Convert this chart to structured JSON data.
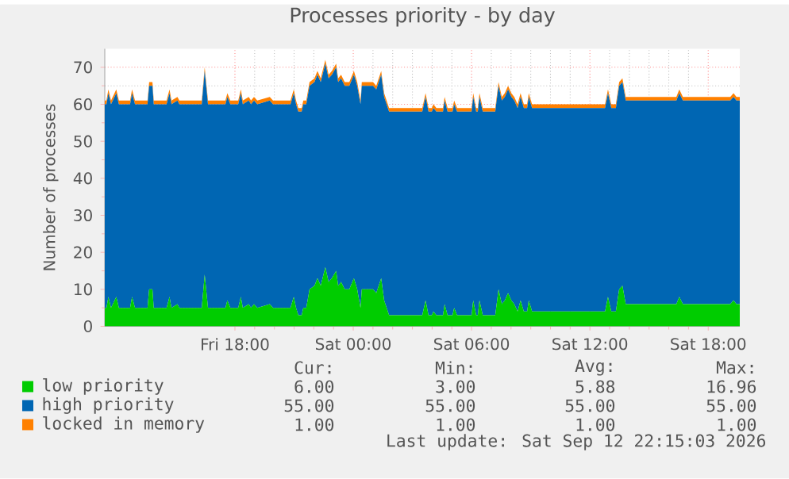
{
  "chart_data": {
    "type": "area",
    "title": "Processes priority - by day",
    "ylabel": "Number of processes",
    "stacked": true,
    "grid": true,
    "legend": "bottom",
    "x": [
      "2026-09-11T11:24",
      "2026-09-11T11:29",
      "2026-09-11T11:35",
      "2026-09-11T11:43",
      "2026-09-11T11:59",
      "2026-09-11T12:07",
      "2026-09-11T12:41",
      "2026-09-11T12:47",
      "2026-09-11T12:56",
      "2026-09-11T13:34",
      "2026-09-11T13:39",
      "2026-09-11T13:49",
      "2026-09-11T13:53",
      "2026-09-11T14:32",
      "2026-09-11T14:41",
      "2026-09-11T14:47",
      "2026-09-11T15:05",
      "2026-09-11T15:11",
      "2026-09-11T16:19",
      "2026-09-11T16:28",
      "2026-09-11T16:38",
      "2026-09-11T17:31",
      "2026-09-11T17:37",
      "2026-09-11T17:46",
      "2026-09-11T18:10",
      "2026-09-11T18:18",
      "2026-09-11T18:24",
      "2026-09-11T18:42",
      "2026-09-11T18:49",
      "2026-09-11T18:58",
      "2026-09-11T19:08",
      "2026-09-11T19:46",
      "2026-09-11T19:56",
      "2026-09-11T20:49",
      "2026-09-11T20:59",
      "2026-09-11T21:06",
      "2026-09-11T21:13",
      "2026-09-11T21:23",
      "2026-09-11T21:28",
      "2026-09-11T21:37",
      "2026-09-11T21:47",
      "2026-09-11T22:02",
      "2026-09-11T22:11",
      "2026-09-11T22:21",
      "2026-09-11T22:35",
      "2026-09-11T22:45",
      "2026-09-11T22:55",
      "2026-09-11T23:08",
      "2026-09-11T23:14",
      "2026-09-11T23:23",
      "2026-09-11T23:34",
      "2026-09-11T23:48",
      "2026-09-12T00:02",
      "2026-09-12T00:12",
      "2026-09-12T00:22",
      "2026-09-12T00:26",
      "2026-09-12T01:00",
      "2026-09-12T01:10",
      "2026-09-12T01:25",
      "2026-09-12T01:34",
      "2026-09-12T01:49",
      "2026-09-12T03:30",
      "2026-09-12T03:40",
      "2026-09-12T03:49",
      "2026-09-12T03:59",
      "2026-09-12T04:04",
      "2026-09-12T04:13",
      "2026-09-12T04:33",
      "2026-09-12T04:38",
      "2026-09-12T04:47",
      "2026-09-12T05:02",
      "2026-09-12T05:07",
      "2026-09-12T05:16",
      "2026-09-12T06:00",
      "2026-09-12T06:05",
      "2026-09-12T06:14",
      "2026-09-12T06:19",
      "2026-09-12T06:24",
      "2026-09-12T06:34",
      "2026-09-12T07:12",
      "2026-09-12T07:22",
      "2026-09-12T07:32",
      "2026-09-12T07:41",
      "2026-09-12T07:51",
      "2026-09-12T08:01",
      "2026-09-12T08:10",
      "2026-09-12T08:20",
      "2026-09-12T08:29",
      "2026-09-12T08:39",
      "2026-09-12T08:49",
      "2026-09-12T08:54",
      "2026-09-12T09:04",
      "2026-09-12T12:46",
      "2026-09-12T12:55",
      "2026-09-12T13:05",
      "2026-09-12T13:19",
      "2026-09-12T13:29",
      "2026-09-12T13:39",
      "2026-09-12T13:49",
      "2026-09-12T16:23",
      "2026-09-12T16:32",
      "2026-09-12T16:43",
      "2026-09-12T19:07",
      "2026-09-12T19:17",
      "2026-09-12T19:26",
      "2026-09-12T19:36"
    ],
    "series": [
      {
        "name": "low priority",
        "color": "#00cc00",
        "values": [
          5,
          5,
          8,
          5,
          8,
          5,
          5,
          8,
          5,
          5,
          10,
          10,
          5,
          5,
          8,
          5,
          6,
          5,
          5,
          14,
          5,
          5,
          7,
          5,
          5,
          8,
          5,
          6,
          5,
          6,
          5,
          6,
          5,
          5,
          8,
          5,
          3,
          3,
          5,
          5,
          10,
          11,
          13,
          11,
          16,
          12,
          13,
          15,
          11,
          12,
          10,
          10,
          13,
          10,
          5,
          10,
          10,
          9,
          13,
          7,
          3,
          3,
          7,
          3,
          3,
          4,
          3,
          3,
          6,
          3,
          3,
          5,
          3,
          3,
          7,
          3,
          3,
          7,
          3,
          3,
          10,
          6,
          7,
          9,
          7,
          6,
          4,
          7,
          4,
          4,
          7,
          4,
          4,
          8,
          4,
          4,
          10,
          11,
          6,
          6,
          8,
          6,
          6,
          7,
          6,
          6
        ]
      },
      {
        "name": "high priority",
        "color": "#0066b3",
        "values": [
          55,
          55,
          55,
          55,
          55,
          55,
          55,
          55,
          55,
          55,
          55,
          55,
          55,
          55,
          55,
          55,
          55,
          55,
          55,
          55,
          55,
          55,
          55,
          55,
          55,
          55,
          55,
          55,
          55,
          55,
          55,
          55,
          55,
          55,
          55,
          55,
          55,
          55,
          55,
          55,
          55,
          55,
          55,
          55,
          55,
          55,
          55,
          55,
          55,
          55,
          55,
          55,
          55,
          55,
          55,
          55,
          55,
          55,
          55,
          55,
          55,
          55,
          55,
          55,
          55,
          55,
          55,
          55,
          55,
          55,
          55,
          55,
          55,
          55,
          55,
          55,
          55,
          55,
          55,
          55,
          55,
          55,
          55,
          55,
          55,
          55,
          55,
          55,
          55,
          55,
          55,
          55,
          55,
          55,
          55,
          55,
          55,
          55,
          55,
          55,
          55,
          55,
          55,
          55,
          55,
          55
        ]
      },
      {
        "name": "locked in memory",
        "color": "#ff8000",
        "values": [
          1,
          1,
          1,
          1,
          1,
          1,
          1,
          1,
          1,
          1,
          1,
          1,
          1,
          1,
          1,
          1,
          1,
          1,
          1,
          1,
          1,
          1,
          1,
          1,
          1,
          1,
          1,
          1,
          1,
          1,
          1,
          1,
          1,
          1,
          1,
          1,
          1,
          1,
          1,
          1,
          1,
          1,
          1,
          1,
          1,
          1,
          1,
          1,
          1,
          1,
          1,
          1,
          1,
          1,
          1,
          1,
          1,
          1,
          1,
          1,
          1,
          1,
          1,
          1,
          1,
          1,
          1,
          1,
          1,
          1,
          1,
          1,
          1,
          1,
          1,
          1,
          1,
          1,
          1,
          1,
          1,
          1,
          1,
          1,
          1,
          1,
          1,
          1,
          1,
          1,
          1,
          1,
          1,
          1,
          1,
          1,
          1,
          1,
          1,
          1,
          1,
          1,
          1,
          1,
          1,
          1
        ]
      }
    ],
    "xlim": [
      "2026-09-11T11:24",
      "2026-09-12T19:36"
    ],
    "xticks": [
      {
        "value": "2026-09-11T18:00",
        "label": "Fri 18:00"
      },
      {
        "value": "2026-09-12T00:00",
        "label": "Sat 00:00"
      },
      {
        "value": "2026-09-12T06:00",
        "label": "Sat 06:00"
      },
      {
        "value": "2026-09-12T12:00",
        "label": "Sat 12:00"
      },
      {
        "value": "2026-09-12T18:00",
        "label": "Sat 18:00"
      }
    ],
    "ylim": [
      0,
      75
    ],
    "yticks": [
      0,
      10,
      20,
      30,
      40,
      50,
      60,
      70
    ],
    "annotations": [
      "Cur:",
      "Min:",
      "Avg:",
      "Max:",
      "6.00",
      "3.00",
      "5.88",
      "16.96",
      "55.00",
      "55.00",
      "55.00",
      "55.00",
      "1.00",
      "1.00",
      "1.00",
      "1.00",
      "Last update: Sat Sep 12 22:15:03 2026"
    ]
  }
}
